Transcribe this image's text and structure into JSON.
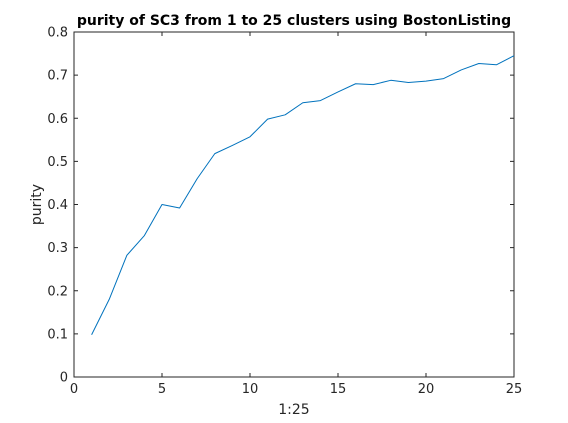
{
  "chart_data": {
    "type": "line",
    "title": "purity of SC3 from 1 to 25 clusters using BostonListing",
    "xlabel": "1:25",
    "ylabel": "purity",
    "xlim": [
      0,
      25
    ],
    "ylim": [
      0,
      0.8
    ],
    "x_ticks": [
      0,
      5,
      10,
      15,
      20,
      25
    ],
    "x_tick_labels": [
      "0",
      "5",
      "10",
      "15",
      "20",
      "25"
    ],
    "y_ticks": [
      0,
      0.1,
      0.2,
      0.3,
      0.4,
      0.5,
      0.6,
      0.7,
      0.8
    ],
    "y_tick_labels": [
      "0",
      "0.1",
      "0.2",
      "0.3",
      "0.4",
      "0.5",
      "0.6",
      "0.7",
      "0.8"
    ],
    "grid": false,
    "colors": {
      "line": "#0072bd",
      "axes": "#262626",
      "background": "#ffffff"
    },
    "series": [
      {
        "x": [
          1,
          2,
          3,
          4,
          5,
          6,
          7,
          8,
          9,
          10,
          11,
          12,
          13,
          14,
          15,
          16,
          17,
          18,
          19,
          20,
          21,
          22,
          23,
          24,
          25
        ],
        "values": [
          0.098,
          0.18,
          0.282,
          0.328,
          0.4,
          0.392,
          0.46,
          0.518,
          0.537,
          0.557,
          0.598,
          0.608,
          0.636,
          0.641,
          0.661,
          0.68,
          0.678,
          0.688,
          0.683,
          0.686,
          0.692,
          0.712,
          0.727,
          0.724,
          0.745
        ]
      }
    ]
  }
}
